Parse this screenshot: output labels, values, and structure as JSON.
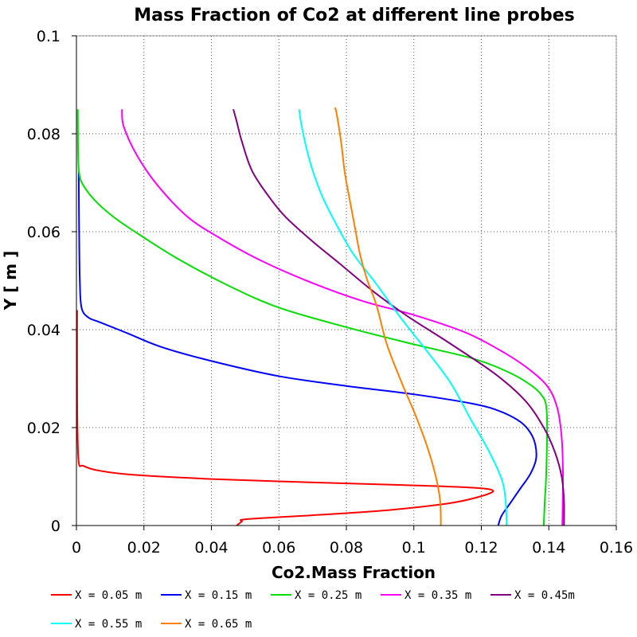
{
  "chart_data": {
    "type": "line",
    "title": "Mass Fraction of Co2 at different line probes",
    "xlabel": "Co2.Mass Fraction",
    "ylabel": "Y [ m ]",
    "xlim": [
      0,
      0.16
    ],
    "ylim": [
      0,
      0.1
    ],
    "x_ticks": [
      "0",
      "0.02",
      "0.04",
      "0.06",
      "0.08",
      "0.1",
      "0.12",
      "0.14",
      "0.16"
    ],
    "y_ticks": [
      "0",
      "0.02",
      "0.04",
      "0.06",
      "0.08",
      "0.1"
    ],
    "grid": true,
    "legend_position": "bottom",
    "series": [
      {
        "name": "X = 0.05 m",
        "color": "#ff0000",
        "points": [
          [
            0.0475,
            0
          ],
          [
            0.049,
            0.0008
          ],
          [
            0.0505,
            0.0013
          ],
          [
            0.07,
            0.0021
          ],
          [
            0.09,
            0.003
          ],
          [
            0.11,
            0.0045
          ],
          [
            0.1195,
            0.0059
          ],
          [
            0.1235,
            0.0071
          ],
          [
            0.118,
            0.0077
          ],
          [
            0.1,
            0.0082
          ],
          [
            0.07,
            0.0088
          ],
          [
            0.04,
            0.0095
          ],
          [
            0.016,
            0.0104
          ],
          [
            0.006,
            0.0113
          ],
          [
            0.002,
            0.0122
          ],
          [
            0.0007,
            0.0128
          ],
          [
            0.0003,
            0.02
          ],
          [
            0.0002,
            0.03
          ],
          [
            0.0002,
            0.044
          ]
        ]
      },
      {
        "name": "X = 0.15 m",
        "color": "#0000ff",
        "points": [
          [
            0.125,
            0
          ],
          [
            0.126,
            0.002
          ],
          [
            0.1285,
            0.0045
          ],
          [
            0.1315,
            0.0075
          ],
          [
            0.1345,
            0.0105
          ],
          [
            0.1362,
            0.0135
          ],
          [
            0.136,
            0.0165
          ],
          [
            0.1345,
            0.019
          ],
          [
            0.1315,
            0.0212
          ],
          [
            0.126,
            0.0232
          ],
          [
            0.118,
            0.0248
          ],
          [
            0.1,
            0.0268
          ],
          [
            0.08,
            0.0285
          ],
          [
            0.06,
            0.0305
          ],
          [
            0.04,
            0.0336
          ],
          [
            0.025,
            0.0365
          ],
          [
            0.015,
            0.0393
          ],
          [
            0.007,
            0.0415
          ],
          [
            0.0035,
            0.0425
          ],
          [
            0.0015,
            0.0445
          ],
          [
            0.001,
            0.05
          ],
          [
            0.0008,
            0.06
          ],
          [
            0.0007,
            0.07
          ],
          [
            0.0007,
            0.0722
          ]
        ]
      },
      {
        "name": "X = 0.25 m",
        "color": "#00dd00",
        "points": [
          [
            0.1385,
            0
          ],
          [
            0.1388,
            0.005
          ],
          [
            0.1392,
            0.01
          ],
          [
            0.1395,
            0.02
          ],
          [
            0.1392,
            0.0245
          ],
          [
            0.138,
            0.0265
          ],
          [
            0.135,
            0.0285
          ],
          [
            0.129,
            0.031
          ],
          [
            0.118,
            0.034
          ],
          [
            0.1,
            0.037
          ],
          [
            0.08,
            0.0405
          ],
          [
            0.06,
            0.0445
          ],
          [
            0.045,
            0.049
          ],
          [
            0.03,
            0.0545
          ],
          [
            0.02,
            0.0588
          ],
          [
            0.012,
            0.0625
          ],
          [
            0.006,
            0.066
          ],
          [
            0.002,
            0.0695
          ],
          [
            0.0008,
            0.072
          ],
          [
            0.0005,
            0.076
          ],
          [
            0.0004,
            0.085
          ]
        ]
      },
      {
        "name": "X = 0.35 m",
        "color": "#ff00ff",
        "points": [
          [
            0.144,
            0
          ],
          [
            0.1442,
            0.01
          ],
          [
            0.1438,
            0.018
          ],
          [
            0.1425,
            0.024
          ],
          [
            0.1395,
            0.0285
          ],
          [
            0.133,
            0.0325
          ],
          [
            0.125,
            0.036
          ],
          [
            0.115,
            0.0395
          ],
          [
            0.1,
            0.043
          ],
          [
            0.085,
            0.0458
          ],
          [
            0.07,
            0.0495
          ],
          [
            0.055,
            0.054
          ],
          [
            0.043,
            0.0585
          ],
          [
            0.033,
            0.063
          ],
          [
            0.024,
            0.0695
          ],
          [
            0.018,
            0.0755
          ],
          [
            0.014,
            0.0815
          ],
          [
            0.0135,
            0.085
          ]
        ]
      },
      {
        "name": "X = 0.45m",
        "color": "#800080",
        "points": [
          [
            0.1445,
            0
          ],
          [
            0.1445,
            0.005
          ],
          [
            0.1438,
            0.01
          ],
          [
            0.1418,
            0.015
          ],
          [
            0.1385,
            0.02
          ],
          [
            0.133,
            0.0255
          ],
          [
            0.124,
            0.031
          ],
          [
            0.11,
            0.0375
          ],
          [
            0.098,
            0.0428
          ],
          [
            0.088,
            0.0478
          ],
          [
            0.078,
            0.0535
          ],
          [
            0.07,
            0.058
          ],
          [
            0.062,
            0.063
          ],
          [
            0.057,
            0.0672
          ],
          [
            0.052,
            0.0725
          ],
          [
            0.049,
            0.0785
          ],
          [
            0.0475,
            0.0825
          ],
          [
            0.0465,
            0.085
          ]
        ]
      },
      {
        "name": "X = 0.55 m",
        "color": "#00ffff",
        "points": [
          [
            0.1275,
            0
          ],
          [
            0.1272,
            0.005
          ],
          [
            0.126,
            0.0095
          ],
          [
            0.122,
            0.0155
          ],
          [
            0.117,
            0.0215
          ],
          [
            0.111,
            0.029
          ],
          [
            0.104,
            0.0355
          ],
          [
            0.096,
            0.0425
          ],
          [
            0.089,
            0.0492
          ],
          [
            0.082,
            0.0555
          ],
          [
            0.077,
            0.0615
          ],
          [
            0.073,
            0.067
          ],
          [
            0.07,
            0.0725
          ],
          [
            0.068,
            0.0775
          ],
          [
            0.0665,
            0.0825
          ],
          [
            0.066,
            0.085
          ]
        ]
      },
      {
        "name": "X = 0.65 m",
        "color": "#ff8000",
        "points": [
          [
            0.108,
            0
          ],
          [
            0.1078,
            0.005
          ],
          [
            0.1065,
            0.01
          ],
          [
            0.104,
            0.016
          ],
          [
            0.1005,
            0.0225
          ],
          [
            0.0965,
            0.029
          ],
          [
            0.092,
            0.037
          ],
          [
            0.089,
            0.0448
          ],
          [
            0.086,
            0.0505
          ],
          [
            0.084,
            0.0555
          ],
          [
            0.0825,
            0.061
          ],
          [
            0.081,
            0.0665
          ],
          [
            0.0795,
            0.0722
          ],
          [
            0.0785,
            0.078
          ],
          [
            0.077,
            0.0845
          ],
          [
            0.0765,
            0.0852
          ]
        ]
      }
    ]
  }
}
